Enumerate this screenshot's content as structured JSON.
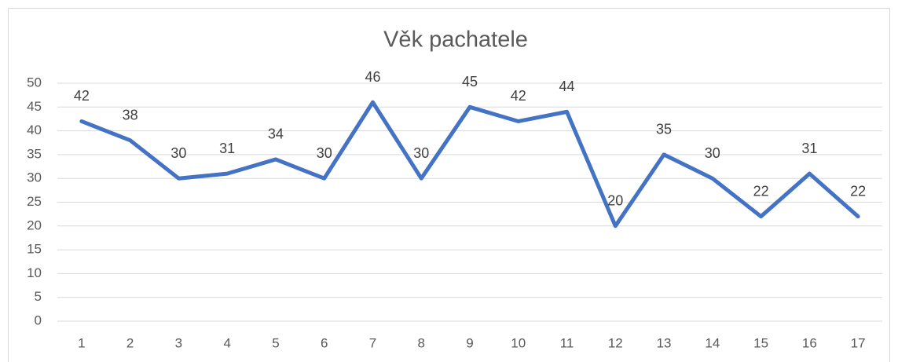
{
  "chart_data": {
    "type": "line",
    "title": "Věk pachatele",
    "categories": [
      "1",
      "2",
      "3",
      "4",
      "5",
      "6",
      "7",
      "8",
      "9",
      "10",
      "11",
      "12",
      "13",
      "14",
      "15",
      "16",
      "17"
    ],
    "values": [
      42,
      38,
      30,
      31,
      34,
      30,
      46,
      30,
      45,
      42,
      44,
      20,
      35,
      30,
      22,
      31,
      22
    ],
    "color": "#4472c4",
    "ylim": [
      0,
      50
    ],
    "yticks": [
      0,
      5,
      10,
      15,
      20,
      25,
      30,
      35,
      40,
      45,
      50
    ],
    "grid": true
  }
}
